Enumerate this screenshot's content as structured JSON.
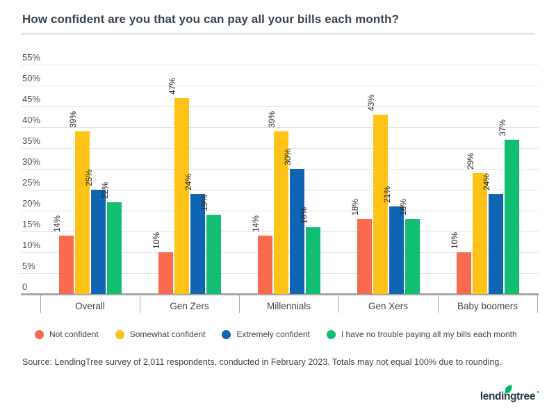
{
  "page": {
    "title": "How confident are you that you can pay all your bills each month?",
    "source": "Source: LendingTree survey of 2,011 respondents, conducted in February 2023. Totals may not equal 100% due to rounding.",
    "logo": {
      "wordmark": "lendingtree"
    }
  },
  "colors": {
    "title_text": "#39444E",
    "axis_text": "#44505A",
    "grid_line": "#E4E4E4",
    "axis_line": "#A6A6A6",
    "divider": "#E8E8E8",
    "value_label": "#272727",
    "logo_text": "#263C47",
    "logo_leaf": "#00B75F"
  },
  "chart_data": {
    "type": "bar",
    "title": "How confident are you that you can pay all your bills each month?",
    "categories": [
      "Overall",
      "Gen Zers",
      "Millennials",
      "Gen Xers",
      "Baby boomers"
    ],
    "series": [
      {
        "name": "Not confident",
        "color": "#F96A4F",
        "values": [
          14,
          10,
          14,
          18,
          10
        ]
      },
      {
        "name": "Somewhat confident",
        "color": "#FFC317",
        "values": [
          39,
          47,
          39,
          43,
          29
        ]
      },
      {
        "name": "Extremely confident",
        "color": "#1065B3",
        "values": [
          25,
          24,
          30,
          21,
          24
        ]
      },
      {
        "name": "I have no trouble paying all my bills each month",
        "color": "#12BE72",
        "values": [
          22,
          19,
          16,
          18,
          37
        ]
      }
    ],
    "xlabel": "",
    "ylabel": "",
    "ylim": [
      0,
      55
    ],
    "ytick_step": 5,
    "ytick_labels": [
      "0",
      "5%",
      "10%",
      "15%",
      "20%",
      "25%",
      "30%",
      "35%",
      "40%",
      "45%",
      "50%",
      "55%"
    ],
    "grid": true,
    "legend_position": "bottom",
    "value_label_format": "{v}%",
    "value_label_rotation": -90
  }
}
